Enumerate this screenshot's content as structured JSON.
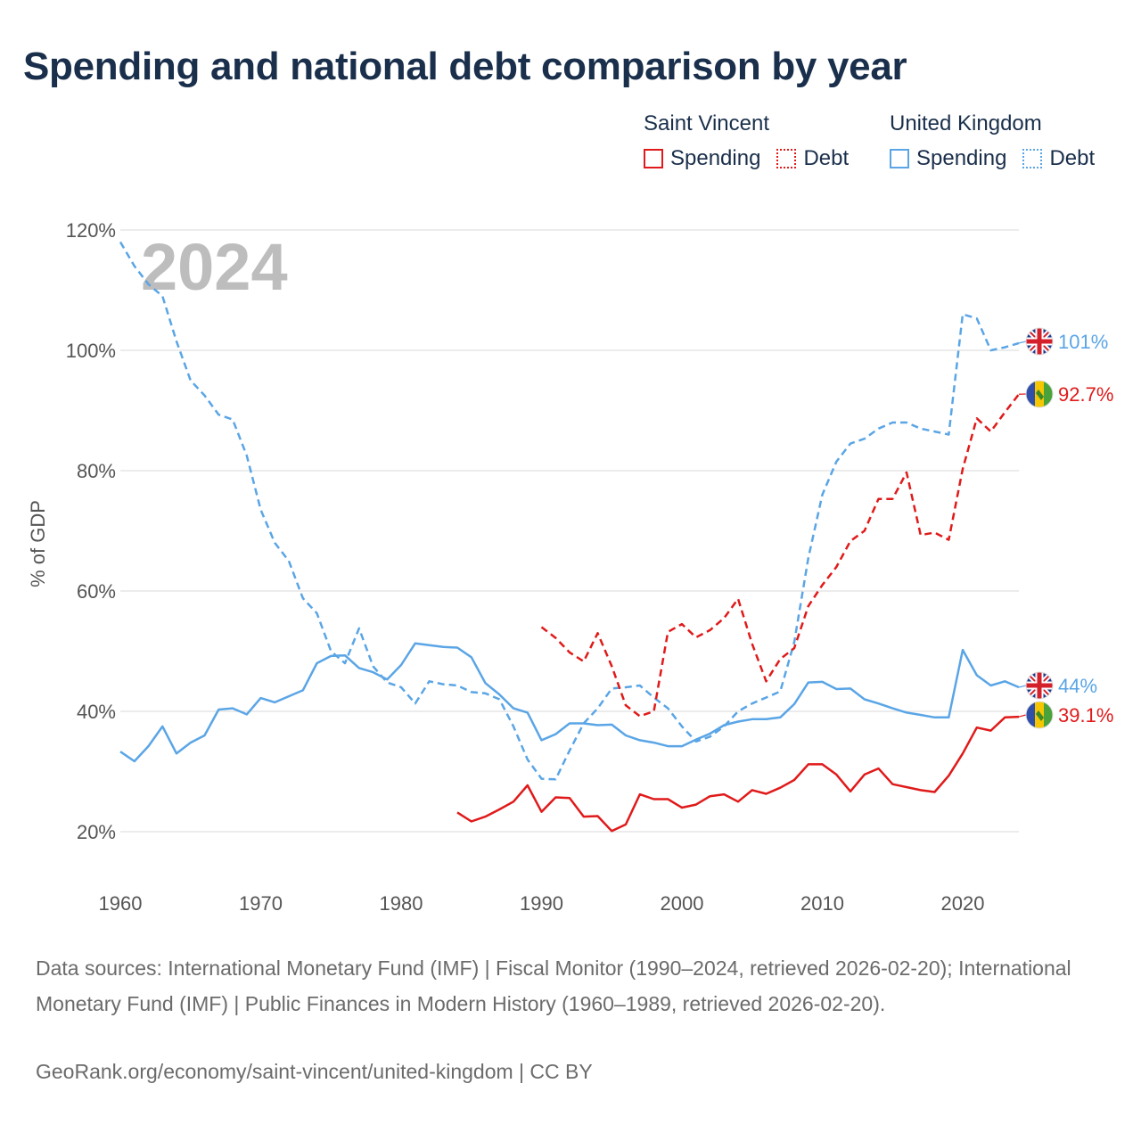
{
  "title": "Spending and national debt comparison by year",
  "legend": {
    "groups": [
      {
        "name": "Saint Vincent",
        "spending_label": "Spending",
        "debt_label": "Debt"
      },
      {
        "name": "United Kingdom",
        "spending_label": "Spending",
        "debt_label": "Debt"
      }
    ]
  },
  "colors": {
    "saint_vincent": "#e01a1a",
    "united_kingdom": "#5aa5e6"
  },
  "sources_text": "Data sources: International Monetary Fund (IMF) | Fiscal Monitor (1990–2024, retrieved 2026-02-20); International Monetary Fund (IMF) | Public Finances in Modern History (1960–1989, retrieved 2026-02-20).",
  "credit_text": "GeoRank.org/economy/saint-vincent/united-kingdom | CC BY",
  "chart_data": {
    "type": "line",
    "title": "Spending and national debt comparison by year",
    "year_label": "2024",
    "ylabel": "% of GDP",
    "xlabel": "",
    "xlim": [
      1960,
      2024
    ],
    "ylim": [
      20,
      120
    ],
    "x_ticks": [
      1960,
      1970,
      1980,
      1990,
      2000,
      2010,
      2020
    ],
    "y_ticks": [
      20,
      40,
      60,
      80,
      100,
      120
    ],
    "y_tick_labels": [
      "20%",
      "40%",
      "60%",
      "80%",
      "100%",
      "120%"
    ],
    "grid": true,
    "legend_position": "top-right",
    "series": [
      {
        "name": "United Kingdom Debt",
        "country": "United Kingdom",
        "metric": "Debt",
        "style": "dashed",
        "color": "#5aa5e6",
        "end_label": "101%",
        "x": [
          1960,
          1961,
          1962,
          1963,
          1964,
          1965,
          1966,
          1967,
          1968,
          1969,
          1970,
          1971,
          1972,
          1973,
          1974,
          1975,
          1976,
          1977,
          1978,
          1979,
          1980,
          1981,
          1982,
          1983,
          1984,
          1985,
          1986,
          1987,
          1988,
          1989,
          1990,
          1991,
          1992,
          1993,
          1994,
          1995,
          1996,
          1997,
          1998,
          1999,
          2000,
          2001,
          2002,
          2003,
          2004,
          2005,
          2006,
          2007,
          2008,
          2009,
          2010,
          2011,
          2012,
          2013,
          2014,
          2015,
          2016,
          2017,
          2018,
          2019,
          2020,
          2021,
          2022,
          2023,
          2024
        ],
        "y": [
          118,
          114,
          111,
          109,
          101.5,
          95,
          92.5,
          89.3,
          88.5,
          82.5,
          73.5,
          68,
          65,
          58.8,
          56.3,
          50,
          48,
          53.8,
          47.5,
          44.8,
          44,
          41.3,
          45,
          44.5,
          44.3,
          43.2,
          43,
          42,
          37.5,
          32,
          28.8,
          28.7,
          33.5,
          38,
          40.5,
          43.8,
          44,
          44.3,
          42.3,
          40.5,
          37.5,
          35,
          35.8,
          37.5,
          40,
          41.3,
          42.3,
          43.3,
          51.5,
          65.5,
          76,
          81.5,
          84.5,
          85.3,
          87,
          88,
          88,
          87,
          86.5,
          86,
          106,
          105.3,
          100,
          100.5,
          101.2
        ]
      },
      {
        "name": "United Kingdom Spending",
        "country": "United Kingdom",
        "metric": "Spending",
        "style": "solid",
        "color": "#5aa5e6",
        "end_label": "44%",
        "x": [
          1960,
          1961,
          1962,
          1963,
          1964,
          1965,
          1966,
          1967,
          1968,
          1969,
          1970,
          1971,
          1972,
          1973,
          1974,
          1975,
          1976,
          1977,
          1978,
          1979,
          1980,
          1981,
          1982,
          1983,
          1984,
          1985,
          1986,
          1987,
          1988,
          1989,
          1990,
          1991,
          1992,
          1993,
          1994,
          1995,
          1996,
          1997,
          1998,
          1999,
          2000,
          2001,
          2002,
          2003,
          2004,
          2005,
          2006,
          2007,
          2008,
          2009,
          2010,
          2011,
          2012,
          2013,
          2014,
          2015,
          2016,
          2017,
          2018,
          2019,
          2020,
          2021,
          2022,
          2023,
          2024
        ],
        "y": [
          33.3,
          31.7,
          34.2,
          37.5,
          33,
          34.8,
          36,
          40.3,
          40.5,
          39.5,
          42.2,
          41.5,
          42.5,
          43.5,
          48,
          49.2,
          49.3,
          47.2,
          46.5,
          45.3,
          47.7,
          51.3,
          51,
          50.7,
          50.6,
          49,
          44.7,
          42.8,
          40.5,
          39.8,
          35.2,
          36.2,
          38,
          38,
          37.7,
          37.8,
          36,
          35.2,
          34.8,
          34.2,
          34.2,
          35.3,
          36.3,
          37.7,
          38.3,
          38.7,
          38.7,
          39,
          41.2,
          44.8,
          44.9,
          43.7,
          43.8,
          42,
          41.3,
          40.5,
          39.8,
          39.4,
          39,
          39,
          50.2,
          46,
          44.3,
          45,
          44
        ]
      },
      {
        "name": "Saint Vincent Debt",
        "country": "Saint Vincent",
        "metric": "Debt",
        "style": "dashed",
        "color": "#e01a1a",
        "end_label": "92.7%",
        "x": [
          1990,
          1991,
          1992,
          1993,
          1994,
          1995,
          1996,
          1997,
          1998,
          1999,
          2000,
          2001,
          2002,
          2003,
          2004,
          2005,
          2006,
          2007,
          2008,
          2009,
          2010,
          2011,
          2012,
          2013,
          2014,
          2015,
          2016,
          2017,
          2018,
          2019,
          2020,
          2021,
          2022,
          2023,
          2024
        ],
        "y": [
          54,
          52.2,
          49.8,
          48.3,
          53,
          47.5,
          41,
          39.2,
          40,
          53.2,
          54.5,
          52.3,
          53.5,
          55.5,
          58.7,
          51.2,
          45,
          48.7,
          50.5,
          57.5,
          61,
          64,
          68.3,
          70,
          75.3,
          75.3,
          79.7,
          69.3,
          69.7,
          68.5,
          80.3,
          88.7,
          86.5,
          89.7,
          92.7
        ]
      },
      {
        "name": "Saint Vincent Spending",
        "country": "Saint Vincent",
        "metric": "Spending",
        "style": "solid",
        "color": "#e01a1a",
        "end_label": "39.1%",
        "x": [
          1984,
          1985,
          1986,
          1987,
          1988,
          1989,
          1990,
          1991,
          1992,
          1993,
          1994,
          1995,
          1996,
          1997,
          1998,
          1999,
          2000,
          2001,
          2002,
          2003,
          2004,
          2005,
          2006,
          2007,
          2008,
          2009,
          2010,
          2011,
          2012,
          2013,
          2014,
          2015,
          2016,
          2017,
          2018,
          2019,
          2020,
          2021,
          2022,
          2023,
          2024
        ],
        "y": [
          23.2,
          21.7,
          22.5,
          23.7,
          25,
          27.7,
          23.3,
          25.7,
          25.6,
          22.5,
          22.6,
          20.1,
          21.2,
          26.2,
          25.4,
          25.4,
          24,
          24.5,
          25.9,
          26.2,
          25,
          26.9,
          26.3,
          27.3,
          28.6,
          31.2,
          31.2,
          29.5,
          26.7,
          29.5,
          30.5,
          27.9,
          27.4,
          26.9,
          26.6,
          29.3,
          33,
          37.3,
          36.8,
          39,
          39.1
        ]
      }
    ]
  }
}
